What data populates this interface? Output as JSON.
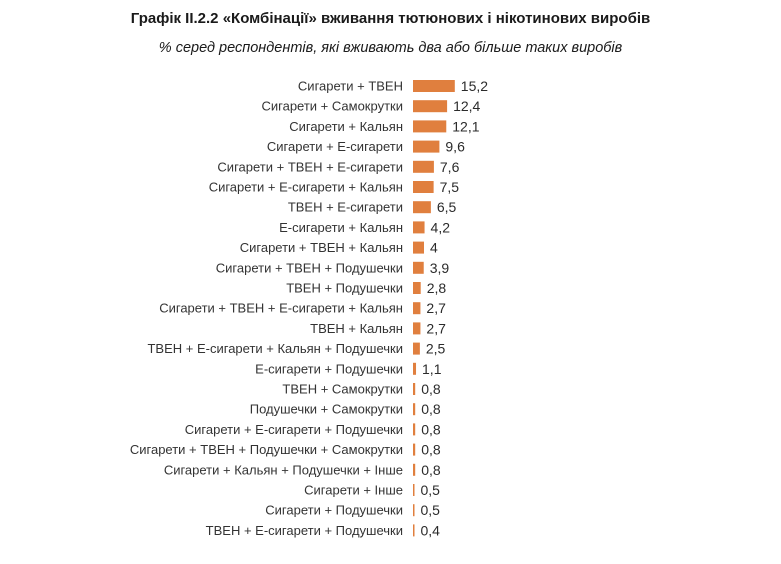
{
  "chart_data": {
    "type": "bar",
    "orientation": "horizontal",
    "title": "Графік II.2.2 «Комбінації» вживання тютюнових і нікотинових виробів",
    "subtitle": "% серед респондентів, які вживають два або більше таких виробів",
    "bar_color": "#E07F3E",
    "grid": false,
    "legend": "none",
    "xlim": [
      0,
      16
    ],
    "categories": [
      "Сигарети + ТВЕН",
      "Сигарети + Самокрутки",
      "Сигарети + Кальян",
      "Сигарети + Е-сигарети",
      "Сигарети + ТВЕН + Е-сигарети",
      "Сигарети + Е-сигарети + Кальян",
      "ТВЕН + Е-сигарети",
      "Е-сигарети + Кальян",
      "Сигарети + ТВЕН + Кальян",
      "Сигарети + ТВЕН + Подушечки",
      "ТВЕН + Подушечки",
      "Сигарети + ТВЕН + Е-сигарети + Кальян",
      "ТВЕН + Кальян",
      "ТВЕН + Е-сигарети + Кальян + Подушечки",
      "Е-сигарети + Подушечки",
      "ТВЕН + Самокрутки",
      "Подушечки + Самокрутки",
      "Сигарети + Е-сигарети + Подушечки",
      "Сигарети + ТВЕН + Подушечки + Самокрутки",
      "Сигарети + Кальян + Подушечки + Інше",
      "Сигарети + Інше",
      "Сигарети + Подушечки",
      "ТВЕН + Е-сигарети + Подушечки"
    ],
    "values": [
      15.2,
      12.4,
      12.1,
      9.6,
      7.6,
      7.5,
      6.5,
      4.2,
      4,
      3.9,
      2.8,
      2.7,
      2.7,
      2.5,
      1.1,
      0.8,
      0.8,
      0.8,
      0.8,
      0.8,
      0.5,
      0.5,
      0.4
    ],
    "value_labels": [
      "15,2",
      "12,4",
      "12,1",
      "9,6",
      "7,6",
      "7,5",
      "6,5",
      "4,2",
      "4",
      "3,9",
      "2,8",
      "2,7",
      "2,7",
      "2,5",
      "1,1",
      "0,8",
      "0,8",
      "0,8",
      "0,8",
      "0,8",
      "0,5",
      "0,5",
      "0,4"
    ]
  }
}
